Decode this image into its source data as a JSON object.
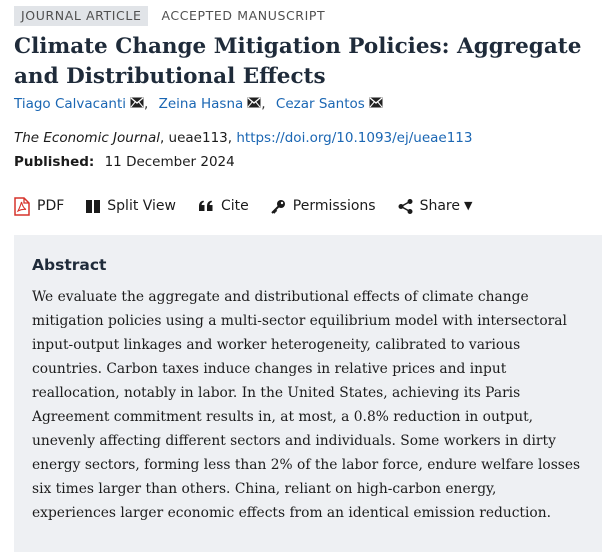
{
  "badges": {
    "type": "JOURNAL ARTICLE",
    "status": "ACCEPTED MANUSCRIPT"
  },
  "article": {
    "title": "Climate Change Mitigation Policies: Aggregate and Distributional Effects",
    "authors": [
      {
        "name": "Tiago Calvacanti"
      },
      {
        "name": "Zeina Hasna"
      },
      {
        "name": "Cezar Santos"
      }
    ],
    "author_separator": ",",
    "journal": "The Economic Journal",
    "article_id": ", ueae113, ",
    "doi": "https://doi.org/10.1093/ej/ueae113",
    "published_label": "Published:",
    "published_date": "11 December 2024"
  },
  "toolbar": {
    "pdf": "PDF",
    "split_view": "Split View",
    "cite": "Cite",
    "permissions": "Permissions",
    "share": "Share"
  },
  "abstract": {
    "heading": "Abstract",
    "text": "We evaluate the aggregate and distributional effects of climate change mitigation policies using a multi-sector equilibrium model with intersectoral input-output linkages and worker heterogeneity, calibrated to various countries. Carbon taxes induce changes in relative prices and input reallocation, notably in labor. In the United States, achieving its Paris Agreement commitment results in, at most, a 0.8% reduction in output, unevenly affecting different sectors and individuals. Some workers in dirty energy sectors, forming less than 2% of the labor force, endure welfare losses six times larger than others. China, reliant on high-carbon energy, experiences larger economic effects from an identical emission reduction."
  },
  "icons": {
    "mail": "envelope-icon",
    "pdf": "pdf-file-icon",
    "split_view": "split-view-icon",
    "cite": "quote-icon",
    "permissions": "key-icon",
    "share": "share-icon",
    "dropdown": "caret-down-icon"
  },
  "colors": {
    "link": "#1a66b3",
    "pdf_icon": "#d6332b",
    "abstract_bg": "#eef0f3",
    "badge_bg": "#e1e4e8"
  }
}
